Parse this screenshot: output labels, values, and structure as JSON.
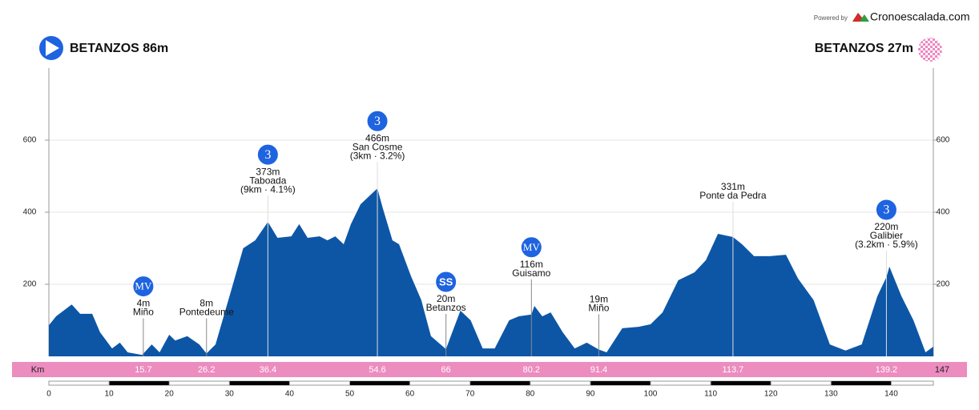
{
  "header": {
    "start": "BETANZOS 86m",
    "finish": "BETANZOS 27m",
    "powered": "Powered by",
    "brand": "Cronoescalada.com"
  },
  "chart_data": {
    "type": "area",
    "color": "#0d56a6",
    "strip_label": "Km",
    "x": [
      0,
      1.2,
      3.8,
      5.2,
      7.2,
      8.5,
      10.5,
      11.8,
      13.1,
      15.5,
      17.1,
      18.4,
      20,
      21,
      23,
      25,
      26.2,
      27.7,
      30.4,
      32.3,
      34.3,
      36.4,
      38,
      40.3,
      41.6,
      43,
      45,
      46.3,
      47.6,
      49,
      50.2,
      51.8,
      54.6,
      55.5,
      57.1,
      58.2,
      60.2,
      61.9,
      63.5,
      66,
      66.8,
      68.4,
      70.1,
      72.1,
      74.1,
      76.5,
      78.1,
      80.2,
      80.7,
      82,
      83.4,
      85.4,
      87.4,
      89.4,
      91.4,
      92.7,
      95.3,
      98,
      100,
      102,
      104.6,
      107.3,
      109.2,
      111.2,
      113.7,
      115.2,
      117.2,
      119.8,
      122.5,
      124.5,
      127.1,
      129.8,
      132.4,
      135.1,
      137.7,
      139.2,
      139.7,
      141.7,
      143.7,
      145.7,
      147
    ],
    "values": [
      86,
      111,
      144,
      118,
      118,
      67,
      22,
      38,
      11,
      4,
      33,
      11,
      60,
      44,
      56,
      33,
      8,
      33,
      189,
      300,
      322,
      373,
      329,
      333,
      367,
      329,
      333,
      322,
      333,
      311,
      367,
      422,
      466,
      411,
      322,
      311,
      222,
      156,
      56,
      20,
      56,
      127,
      100,
      22,
      22,
      100,
      111,
      116,
      140,
      111,
      122,
      67,
      22,
      38,
      19,
      11,
      78,
      82,
      89,
      122,
      211,
      233,
      267,
      340,
      331,
      311,
      278,
      278,
      282,
      216,
      156,
      33,
      16,
      33,
      167,
      220,
      249,
      167,
      100,
      11,
      27
    ],
    "xlim": [
      0,
      147
    ],
    "ylim": [
      0,
      800
    ],
    "xticks": [
      0,
      10,
      20,
      30,
      40,
      50,
      60,
      70,
      80,
      90,
      100,
      110,
      120,
      130,
      140
    ],
    "yticks": [
      200,
      400,
      600
    ],
    "grid": true,
    "annotations": [
      {
        "x": 15.7,
        "elevation": "4m",
        "name": "Miño",
        "badge": "MV"
      },
      {
        "x": 26.2,
        "elevation": "8m",
        "name": "Pontedeume"
      },
      {
        "x": 36.4,
        "elevation": "373m",
        "name": "Taboada",
        "detail": "(9km · 4.1%)",
        "badge": "3"
      },
      {
        "x": 54.6,
        "elevation": "466m",
        "name": "San Cosme",
        "detail": "(3km · 3.2%)",
        "badge": "3"
      },
      {
        "x": 66,
        "elevation": "20m",
        "name": "Betanzos",
        "badge": "SS"
      },
      {
        "x": 80.2,
        "elevation": "116m",
        "name": "Guisamo",
        "badge": "MV"
      },
      {
        "x": 91.4,
        "elevation": "19m",
        "name": "Miño"
      },
      {
        "x": 113.7,
        "elevation": "331m",
        "name": "Ponte da Pedra"
      },
      {
        "x": 139.2,
        "elevation": "220m",
        "name": "Galibier",
        "detail": "(3.2km · 5.9%)",
        "badge": "3"
      }
    ]
  }
}
